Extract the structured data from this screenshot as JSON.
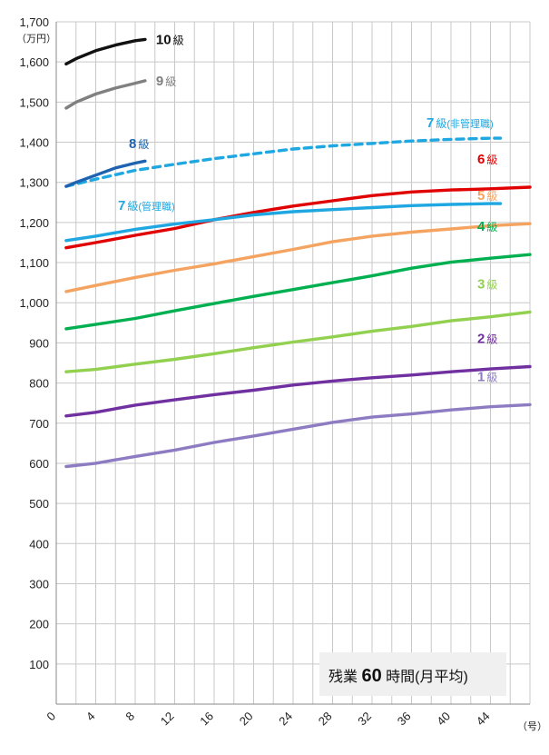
{
  "chart_data": {
    "type": "line",
    "y_unit": "（万円）",
    "x_unit": "（号）",
    "ylim": [
      0,
      1700
    ],
    "xlim": [
      0,
      48
    ],
    "y_ticks": [
      "100",
      "200",
      "300",
      "400",
      "500",
      "600",
      "700",
      "800",
      "900",
      "1,000",
      "1,100",
      "1,200",
      "1,300",
      "1,400",
      "1,500",
      "1,600",
      "1,700"
    ],
    "y_tick_values": [
      100,
      200,
      300,
      400,
      500,
      600,
      700,
      800,
      900,
      1000,
      1100,
      1200,
      1300,
      1400,
      1500,
      1600,
      1700
    ],
    "x_ticks": [
      "0",
      "4",
      "8",
      "12",
      "16",
      "20",
      "24",
      "28",
      "32",
      "36",
      "40",
      "44"
    ],
    "x_tick_values": [
      0,
      4,
      8,
      12,
      16,
      20,
      24,
      28,
      32,
      36,
      40,
      44
    ],
    "grid": true,
    "note": {
      "pre": "残業",
      "num": "60",
      "post": "時間(月平均)"
    },
    "series": [
      {
        "num": "1",
        "kyu": "級",
        "sub": "",
        "color": "#8e7cc3",
        "dashed": false,
        "label_pos": "right",
        "x": [
          1,
          4,
          8,
          12,
          16,
          20,
          24,
          28,
          32,
          36,
          40,
          44,
          48
        ],
        "y": [
          592,
          600,
          617,
          633,
          652,
          668,
          685,
          702,
          715,
          723,
          733,
          741,
          746
        ]
      },
      {
        "num": "2",
        "kyu": "級",
        "sub": "",
        "color": "#7030a0",
        "dashed": false,
        "label_pos": "right",
        "x": [
          1,
          4,
          8,
          12,
          16,
          20,
          24,
          28,
          32,
          36,
          40,
          44,
          48
        ],
        "y": [
          718,
          727,
          745,
          758,
          771,
          782,
          795,
          805,
          813,
          820,
          828,
          835,
          841
        ]
      },
      {
        "num": "3",
        "kyu": "級",
        "sub": "",
        "color": "#92d050",
        "dashed": false,
        "label_pos": "right",
        "x": [
          1,
          4,
          8,
          12,
          16,
          20,
          24,
          28,
          32,
          36,
          40,
          44,
          48
        ],
        "y": [
          828,
          834,
          847,
          859,
          873,
          888,
          902,
          915,
          929,
          941,
          955,
          965,
          977
        ]
      },
      {
        "num": "4",
        "kyu": "級",
        "sub": "",
        "color": "#00b050",
        "dashed": false,
        "label_pos": "right",
        "x": [
          1,
          4,
          8,
          12,
          16,
          20,
          24,
          28,
          32,
          36,
          40,
          44,
          48
        ],
        "y": [
          935,
          946,
          961,
          980,
          998,
          1016,
          1033,
          1050,
          1067,
          1086,
          1101,
          1111,
          1120
        ]
      },
      {
        "num": "5",
        "kyu": "級",
        "sub": "",
        "color": "#f4a460",
        "dashed": false,
        "label_pos": "right",
        "x": [
          1,
          4,
          8,
          12,
          16,
          20,
          24,
          28,
          32,
          36,
          40,
          44,
          48
        ],
        "y": [
          1028,
          1043,
          1063,
          1081,
          1097,
          1115,
          1133,
          1152,
          1166,
          1176,
          1184,
          1192,
          1197
        ]
      },
      {
        "num": "6",
        "kyu": "級",
        "sub": "",
        "color": "#e00000",
        "dashed": false,
        "label_pos": "right",
        "x": [
          1,
          4,
          8,
          12,
          16,
          20,
          24,
          28,
          32,
          36,
          40,
          44,
          48
        ],
        "y": [
          1137,
          1150,
          1168,
          1185,
          1207,
          1225,
          1241,
          1254,
          1267,
          1276,
          1281,
          1284,
          1288
        ]
      },
      {
        "num": "7",
        "kyu": "級",
        "sub": "(管理職)",
        "color": "#1ea7e1",
        "dashed": false,
        "label_pos": "below",
        "x": [
          1,
          4,
          8,
          12,
          16,
          20,
          24,
          28,
          32,
          36,
          40,
          44,
          45
        ],
        "y": [
          1155,
          1166,
          1183,
          1196,
          1207,
          1219,
          1227,
          1232,
          1237,
          1242,
          1245,
          1247,
          1247
        ]
      },
      {
        "num": "7",
        "kyu": "級",
        "sub": "(非管理職)",
        "color": "#1ea7e1",
        "dashed": true,
        "label_pos": "above",
        "x": [
          1,
          4,
          8,
          12,
          16,
          20,
          24,
          28,
          32,
          36,
          40,
          44,
          45
        ],
        "y": [
          1290,
          1308,
          1330,
          1345,
          1359,
          1371,
          1383,
          1391,
          1397,
          1403,
          1407,
          1410,
          1410
        ]
      },
      {
        "num": "8",
        "kyu": "級",
        "sub": "",
        "color": "#1f63b0",
        "dashed": false,
        "label_pos": "above",
        "x": [
          1,
          2,
          4,
          6,
          8,
          9
        ],
        "y": [
          1290,
          1300,
          1318,
          1336,
          1348,
          1353
        ]
      },
      {
        "num": "9",
        "kyu": "級",
        "sub": "",
        "color": "#808080",
        "dashed": false,
        "label_pos": "right",
        "x": [
          1,
          2,
          4,
          6,
          8,
          9
        ],
        "y": [
          1485,
          1500,
          1520,
          1535,
          1547,
          1553
        ]
      },
      {
        "num": "10",
        "kyu": "級",
        "sub": "",
        "color": "#111111",
        "dashed": false,
        "label_pos": "right",
        "x": [
          1,
          2,
          4,
          6,
          8,
          9
        ],
        "y": [
          1595,
          1608,
          1628,
          1642,
          1653,
          1656
        ]
      }
    ]
  }
}
